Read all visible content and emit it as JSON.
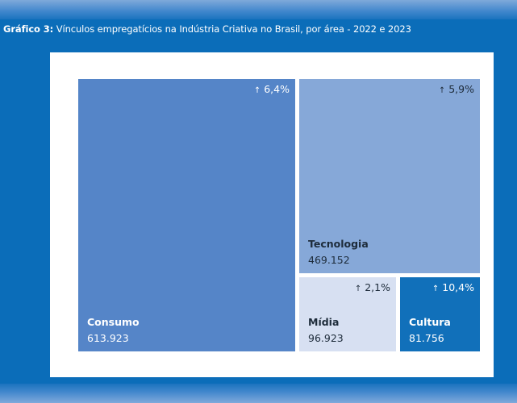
{
  "title": {
    "prefix": "Gráfico 3:",
    "text": "Vínculos empregatícios na Indústria Criativa no Brasil, por área - 2022 e 2023"
  },
  "colors": {
    "background": "#0B6DB9",
    "consumo": "#5585C8",
    "tecnologia": "#86A8D8",
    "midia": "#D7E0F2",
    "cultura": "#1170BA"
  },
  "chart_data": {
    "type": "treemap",
    "title": "Vínculos empregatícios na Indústria Criativa no Brasil, por área - 2022 e 2023",
    "unit": "vínculos (2023)",
    "items": [
      {
        "name": "Consumo",
        "value": 613923,
        "value_label": "613.923",
        "change": "6,4%",
        "direction": "up"
      },
      {
        "name": "Tecnologia",
        "value": 469152,
        "value_label": "469.152",
        "change": "5,9%",
        "direction": "up"
      },
      {
        "name": "Mídia",
        "value": 96923,
        "value_label": "96.923",
        "change": "2,1%",
        "direction": "up"
      },
      {
        "name": "Cultura",
        "value": 81756,
        "value_label": "81.756",
        "change": "10,4%",
        "direction": "up"
      }
    ]
  }
}
